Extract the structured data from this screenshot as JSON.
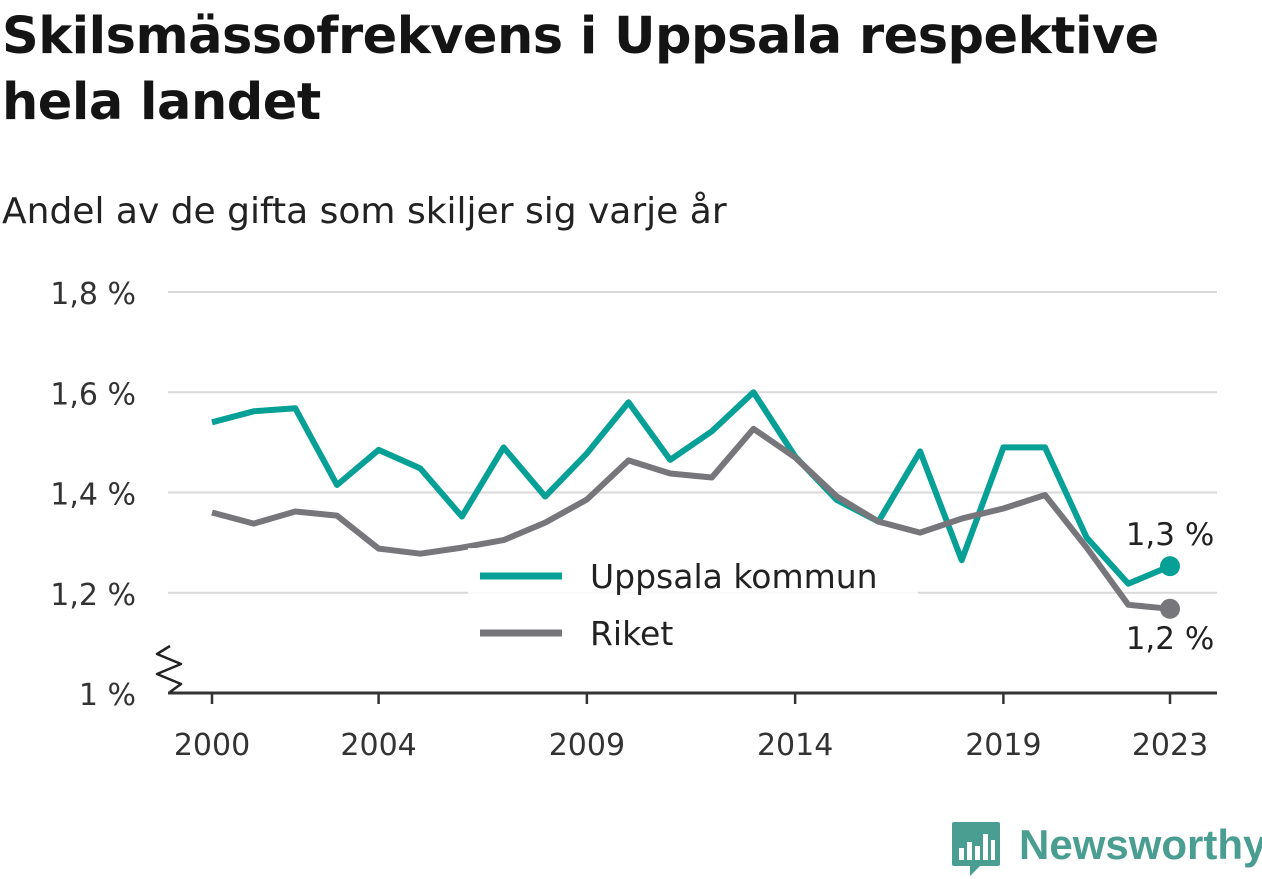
{
  "title": "Skilsmässofrekvens i Uppsala respektive hela landet",
  "subtitle": "Andel av de gifta som skiljer sig varje år",
  "brand": {
    "name": "Newsworthy",
    "icon": "bar-chart-speech-bubble-icon"
  },
  "colors": {
    "uppsala": "#07a096",
    "riket": "#77767b",
    "grid": "#d9d9d9",
    "axis": "#333333"
  },
  "chart_data": {
    "type": "line",
    "title": "Skilsmässofrekvens i Uppsala respektive hela landet",
    "subtitle": "Andel av de gifta som skiljer sig varje år",
    "x": [
      2000,
      2001,
      2002,
      2003,
      2004,
      2005,
      2006,
      2007,
      2008,
      2009,
      2010,
      2011,
      2012,
      2013,
      2014,
      2015,
      2016,
      2017,
      2018,
      2019,
      2020,
      2021,
      2022,
      2023
    ],
    "x_ticks": [
      2000,
      2004,
      2009,
      2014,
      2019,
      2023
    ],
    "y_ticks": [
      1.0,
      1.2,
      1.4,
      1.6,
      1.8
    ],
    "y_tick_labels": [
      "1 %",
      "1,2 %",
      "1,4 %",
      "1,6 %",
      "1,8 %"
    ],
    "ylim": [
      1.0,
      1.8
    ],
    "y_axis_break": true,
    "grid": true,
    "legend_position": "center-bottom",
    "series": [
      {
        "name": "Uppsala kommun",
        "color": "#07a096",
        "values": [
          1.54,
          1.562,
          1.568,
          1.415,
          1.485,
          1.448,
          1.352,
          1.49,
          1.392,
          1.478,
          1.58,
          1.465,
          1.522,
          1.6,
          1.472,
          1.385,
          1.342,
          1.482,
          1.265,
          1.49,
          1.49,
          1.31,
          1.218,
          1.253
        ],
        "end_label": "1,3 %"
      },
      {
        "name": "Riket",
        "color": "#77767b",
        "values": [
          1.36,
          1.338,
          1.362,
          1.354,
          1.288,
          1.278,
          1.29,
          1.305,
          1.34,
          1.386,
          1.464,
          1.438,
          1.43,
          1.527,
          1.47,
          1.392,
          1.342,
          1.32,
          1.348,
          1.368,
          1.395,
          1.29,
          1.176,
          1.168
        ],
        "end_label": "1,2 %"
      }
    ]
  }
}
